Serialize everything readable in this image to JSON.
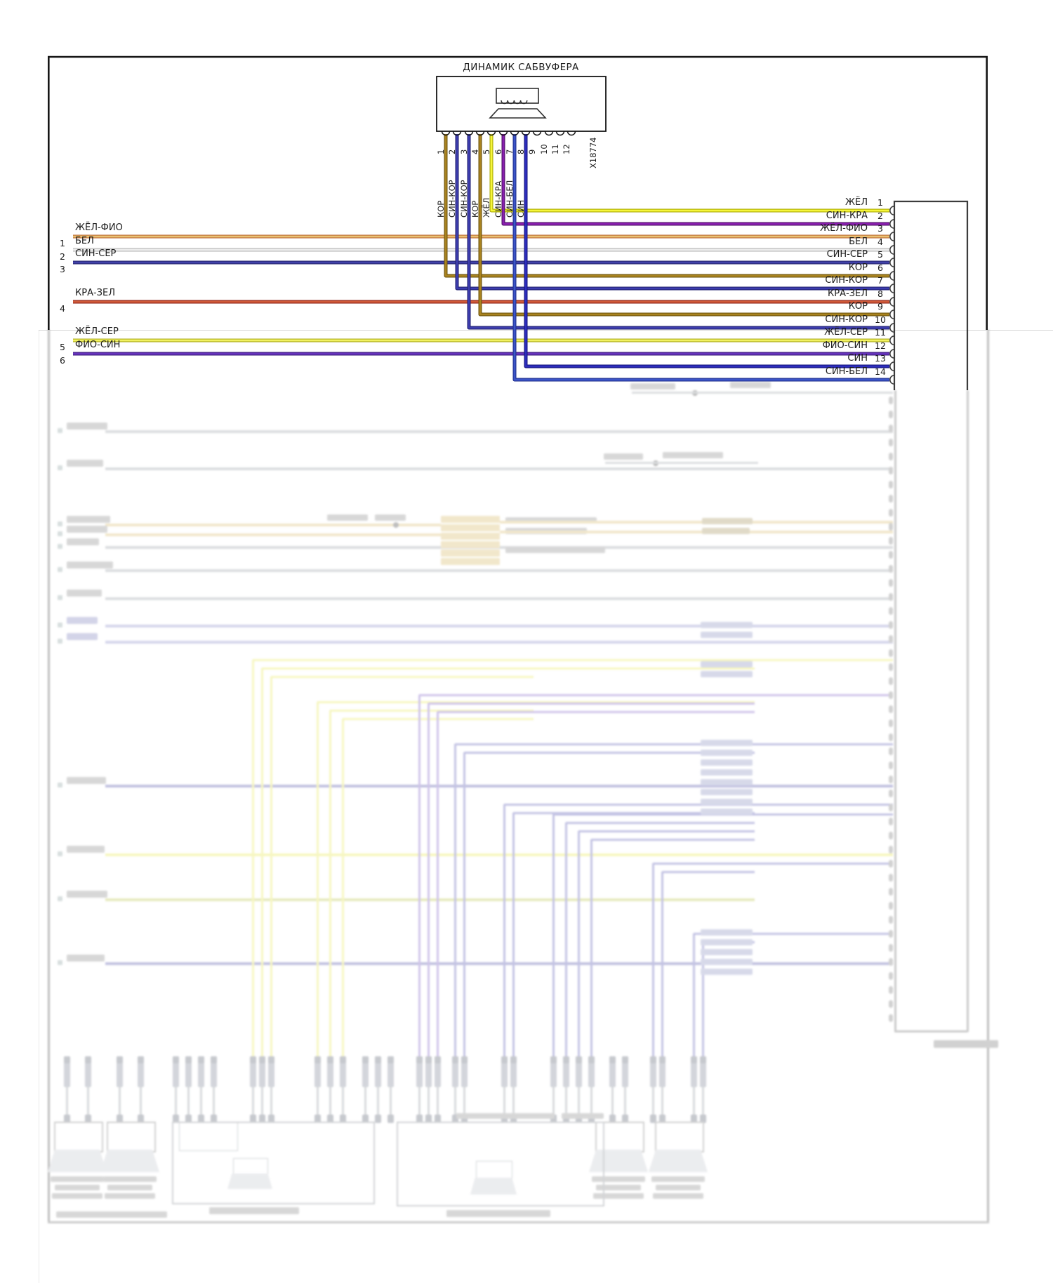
{
  "diagram": {
    "title": "ДИНАМИК САБВУФЕРА",
    "component_connector": "X18774"
  },
  "palette": {
    "zhel": {
      "fill": "#f6f63c",
      "edge": "#a8a800"
    },
    "sin_kra": {
      "fill": "#8a1fb0",
      "edge": "#4f1166"
    },
    "zhel_fio": {
      "fill": "#e9c173",
      "edge": "#bb6a33"
    },
    "bel": {
      "fill": "#ededed",
      "edge": "#b5b5b5"
    },
    "sin_ser": {
      "fill": "#4242aa",
      "edge": "#26266c"
    },
    "kor": {
      "fill": "#a9831f",
      "edge": "#6e540f"
    },
    "sin_kor": {
      "fill": "#3d3daf",
      "edge": "#232371"
    },
    "kra_zel": {
      "fill": "#d05a39",
      "edge": "#8e2114"
    },
    "sin": {
      "fill": "#2d2dbe",
      "edge": "#16167e"
    },
    "sin_bel": {
      "fill": "#3c55c9",
      "edge": "#202f8d"
    },
    "zhel_ser": {
      "fill": "#f2f262",
      "edge": "#acac1c"
    },
    "fio_sin": {
      "fill": "#6733bd",
      "edge": "#3c1c7c"
    }
  },
  "subwoofer_pins": [
    {
      "n": "1",
      "wire": "КОР",
      "color": "kor",
      "row": 6
    },
    {
      "n": "2",
      "wire": "СИН-КОР",
      "color": "sin_kor",
      "row": 7
    },
    {
      "n": "3",
      "wire": "СИН-КОР",
      "color": "sin_kor",
      "row": 10
    },
    {
      "n": "4",
      "wire": "КОР",
      "color": "kor",
      "row": 9
    },
    {
      "n": "5",
      "wire": "ЖЁЛ",
      "color": "zhel",
      "row": 1
    },
    {
      "n": "6",
      "wire": "СИН-КРА",
      "color": "sin_kra",
      "row": 2
    },
    {
      "n": "7",
      "wire": "СИН-БЕЛ",
      "color": "sin_bel",
      "row": 14
    },
    {
      "n": "8",
      "wire": "СИН",
      "color": "sin",
      "row": 13
    },
    {
      "n": "9"
    },
    {
      "n": "10"
    },
    {
      "n": "11"
    },
    {
      "n": "12"
    }
  ],
  "left_branches": [
    {
      "n": "1",
      "label": "ЖЁЛ-ФИО",
      "color": "zhel_fio",
      "row": 3
    },
    {
      "n": "2",
      "label": "БЕЛ",
      "color": "bel",
      "row": 4
    },
    {
      "n": "3",
      "label": "СИН-СЕР",
      "color": "sin_ser",
      "row": 5
    },
    {
      "n": "4",
      "label": "КРА-ЗЕЛ",
      "color": "kra_zel",
      "row": 8
    },
    {
      "n": "5",
      "label": "ЖЁЛ-СЕР",
      "color": "zhel_ser",
      "row": 11
    },
    {
      "n": "6",
      "label": "ФИО-СИН",
      "color": "fio_sin",
      "row": 12
    }
  ],
  "right_connector_rows": [
    {
      "n": "1",
      "label": "ЖЁЛ"
    },
    {
      "n": "2",
      "label": "СИН-КРА"
    },
    {
      "n": "3",
      "label": "ЖЁЛ-ФИО"
    },
    {
      "n": "4",
      "label": "БЕЛ"
    },
    {
      "n": "5",
      "label": "СИН-СЕР"
    },
    {
      "n": "6",
      "label": "КОР"
    },
    {
      "n": "7",
      "label": "СИН-КОР"
    },
    {
      "n": "8",
      "label": "КРА-ЗЕЛ"
    },
    {
      "n": "9",
      "label": "КОР"
    },
    {
      "n": "10",
      "label": "СИН-КОР"
    },
    {
      "n": "11",
      "label": "ЖЁЛ-СЕР"
    },
    {
      "n": "12",
      "label": "ФИО-СИН"
    },
    {
      "n": "13",
      "label": "СИН"
    },
    {
      "n": "14",
      "label": "СИН-БЕЛ"
    }
  ]
}
